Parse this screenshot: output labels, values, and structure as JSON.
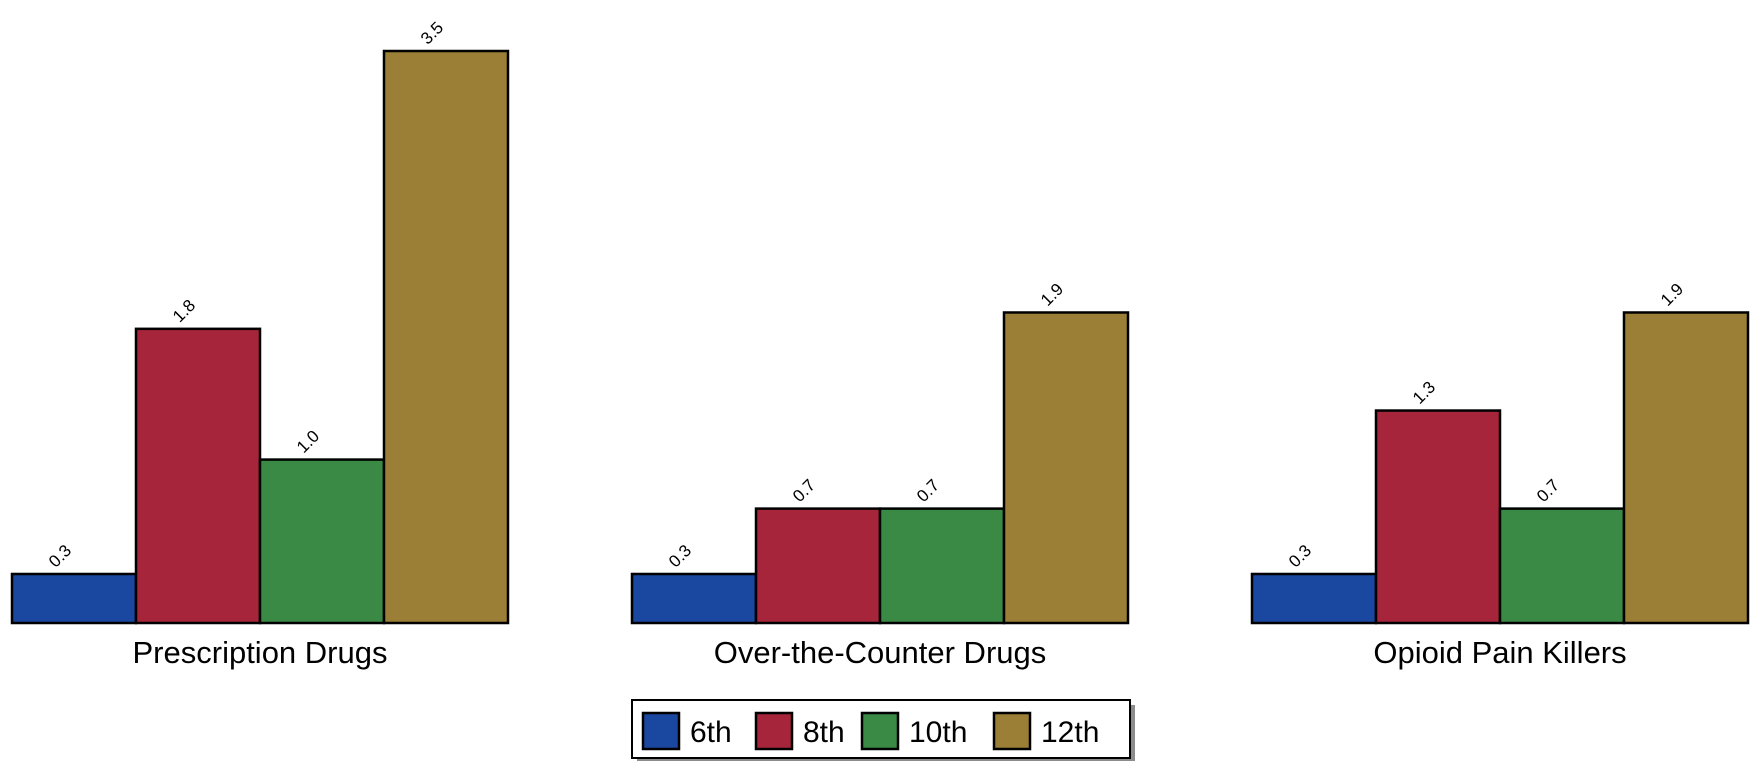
{
  "chart_data": {
    "type": "bar",
    "categories": [
      "Prescription Drugs",
      "Over-the-Counter Drugs",
      "Opioid Pain Killers"
    ],
    "series": [
      {
        "name": "6th",
        "values": [
          0.3,
          0.3,
          0.3
        ]
      },
      {
        "name": "8th",
        "values": [
          1.8,
          0.7,
          1.3
        ]
      },
      {
        "name": "10th",
        "values": [
          1.0,
          0.7,
          0.7
        ]
      },
      {
        "name": "12th",
        "values": [
          3.5,
          1.9,
          1.9
        ]
      }
    ],
    "value_labels": [
      [
        "0.3",
        "0.3",
        "0.3"
      ],
      [
        "1.8",
        "0.7",
        "1.3"
      ],
      [
        "1.0",
        "0.7",
        "0.7"
      ],
      [
        "3.5",
        "1.9",
        "1.9"
      ]
    ],
    "colors": [
      "#1a47a0",
      "#a7253b",
      "#3a8a45",
      "#9c7f36"
    ],
    "ylim": [
      0,
      3.5
    ],
    "grid": false,
    "legend_position": "bottom-center",
    "title": "",
    "xlabel": "",
    "ylabel": ""
  }
}
